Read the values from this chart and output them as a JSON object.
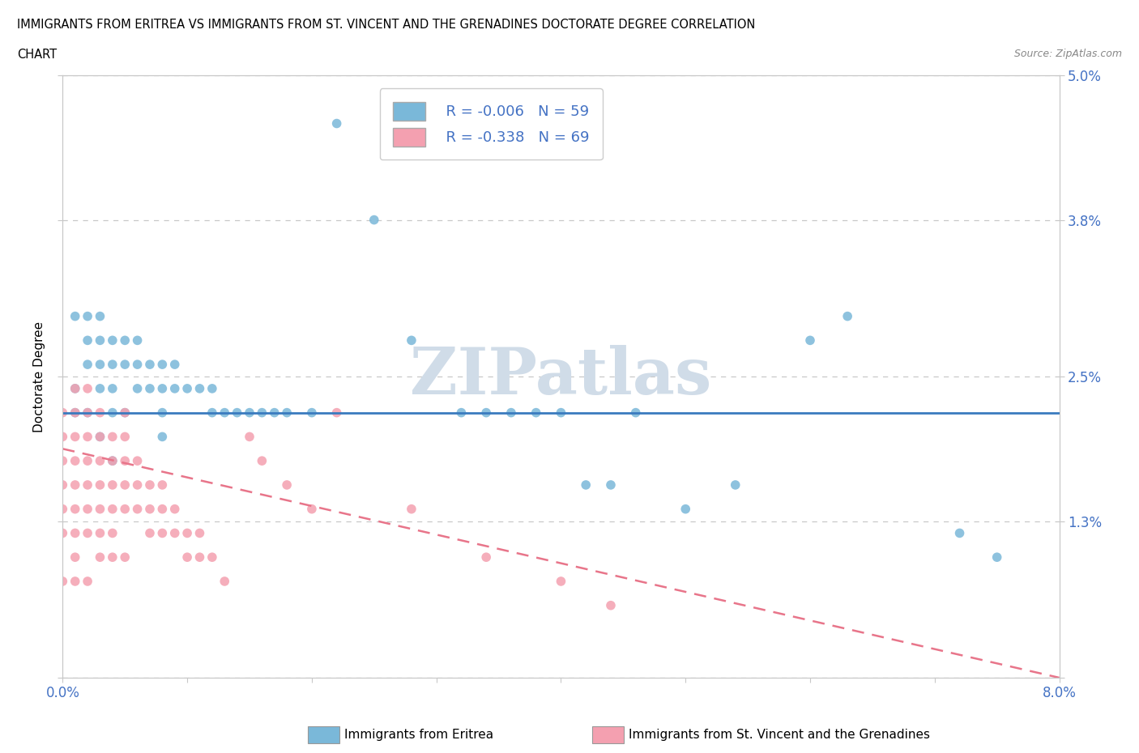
{
  "title_line1": "IMMIGRANTS FROM ERITREA VS IMMIGRANTS FROM ST. VINCENT AND THE GRENADINES DOCTORATE DEGREE CORRELATION",
  "title_line2": "CHART",
  "source_text": "Source: ZipAtlas.com",
  "ylabel": "Doctorate Degree",
  "xlim": [
    0.0,
    0.08
  ],
  "ylim": [
    0.0,
    0.05
  ],
  "ytick_vals": [
    0.0,
    0.013,
    0.025,
    0.038,
    0.05
  ],
  "ytick_labels": [
    "",
    "1.3%",
    "2.5%",
    "3.8%",
    "5.0%"
  ],
  "legend_r1": "R = -0.006",
  "legend_n1": "N = 59",
  "legend_r2": "R = -0.338",
  "legend_n2": "N = 69",
  "color_eritrea": "#7ab8d9",
  "color_stvincent": "#f4a0b0",
  "trendline_eritrea_color": "#3a7bbf",
  "trendline_stvincent_color": "#e8758a",
  "watermark": "ZIPatlas",
  "background_color": "#ffffff",
  "grid_color": "#c8c8c8",
  "tick_color": "#4472c4",
  "eritrea_trend_y0": 0.022,
  "eritrea_trend_y1": 0.022,
  "stvincent_trend_y0": 0.019,
  "stvincent_trend_y1": 0.0,
  "eritrea_scatter_x": [
    0.001,
    0.001,
    0.001,
    0.002,
    0.002,
    0.002,
    0.002,
    0.003,
    0.003,
    0.003,
    0.003,
    0.003,
    0.004,
    0.004,
    0.004,
    0.004,
    0.004,
    0.005,
    0.005,
    0.005,
    0.006,
    0.006,
    0.006,
    0.007,
    0.007,
    0.008,
    0.008,
    0.008,
    0.008,
    0.009,
    0.009,
    0.01,
    0.011,
    0.012,
    0.012,
    0.013,
    0.014,
    0.015,
    0.016,
    0.017,
    0.018,
    0.02,
    0.022,
    0.025,
    0.028,
    0.032,
    0.034,
    0.036,
    0.038,
    0.04,
    0.042,
    0.044,
    0.046,
    0.05,
    0.054,
    0.06,
    0.063,
    0.072,
    0.075
  ],
  "eritrea_scatter_y": [
    0.03,
    0.024,
    0.022,
    0.03,
    0.028,
    0.026,
    0.022,
    0.03,
    0.028,
    0.026,
    0.024,
    0.02,
    0.028,
    0.026,
    0.024,
    0.022,
    0.018,
    0.028,
    0.026,
    0.022,
    0.028,
    0.026,
    0.024,
    0.026,
    0.024,
    0.026,
    0.024,
    0.022,
    0.02,
    0.026,
    0.024,
    0.024,
    0.024,
    0.024,
    0.022,
    0.022,
    0.022,
    0.022,
    0.022,
    0.022,
    0.022,
    0.022,
    0.046,
    0.038,
    0.028,
    0.022,
    0.022,
    0.022,
    0.022,
    0.022,
    0.016,
    0.016,
    0.022,
    0.014,
    0.016,
    0.028,
    0.03,
    0.012,
    0.01
  ],
  "stvincent_scatter_x": [
    0.0,
    0.0,
    0.0,
    0.0,
    0.0,
    0.0,
    0.0,
    0.001,
    0.001,
    0.001,
    0.001,
    0.001,
    0.001,
    0.001,
    0.001,
    0.001,
    0.002,
    0.002,
    0.002,
    0.002,
    0.002,
    0.002,
    0.002,
    0.002,
    0.003,
    0.003,
    0.003,
    0.003,
    0.003,
    0.003,
    0.003,
    0.004,
    0.004,
    0.004,
    0.004,
    0.004,
    0.004,
    0.005,
    0.005,
    0.005,
    0.005,
    0.005,
    0.005,
    0.006,
    0.006,
    0.006,
    0.007,
    0.007,
    0.007,
    0.008,
    0.008,
    0.008,
    0.009,
    0.009,
    0.01,
    0.01,
    0.011,
    0.011,
    0.012,
    0.013,
    0.015,
    0.016,
    0.018,
    0.02,
    0.022,
    0.028,
    0.034,
    0.04,
    0.044
  ],
  "stvincent_scatter_y": [
    0.022,
    0.02,
    0.018,
    0.016,
    0.014,
    0.012,
    0.008,
    0.024,
    0.022,
    0.02,
    0.018,
    0.016,
    0.014,
    0.012,
    0.01,
    0.008,
    0.024,
    0.022,
    0.02,
    0.018,
    0.016,
    0.014,
    0.012,
    0.008,
    0.022,
    0.02,
    0.018,
    0.016,
    0.014,
    0.012,
    0.01,
    0.02,
    0.018,
    0.016,
    0.014,
    0.012,
    0.01,
    0.022,
    0.02,
    0.018,
    0.016,
    0.014,
    0.01,
    0.018,
    0.016,
    0.014,
    0.016,
    0.014,
    0.012,
    0.016,
    0.014,
    0.012,
    0.014,
    0.012,
    0.012,
    0.01,
    0.012,
    0.01,
    0.01,
    0.008,
    0.02,
    0.018,
    0.016,
    0.014,
    0.022,
    0.014,
    0.01,
    0.008,
    0.006
  ]
}
